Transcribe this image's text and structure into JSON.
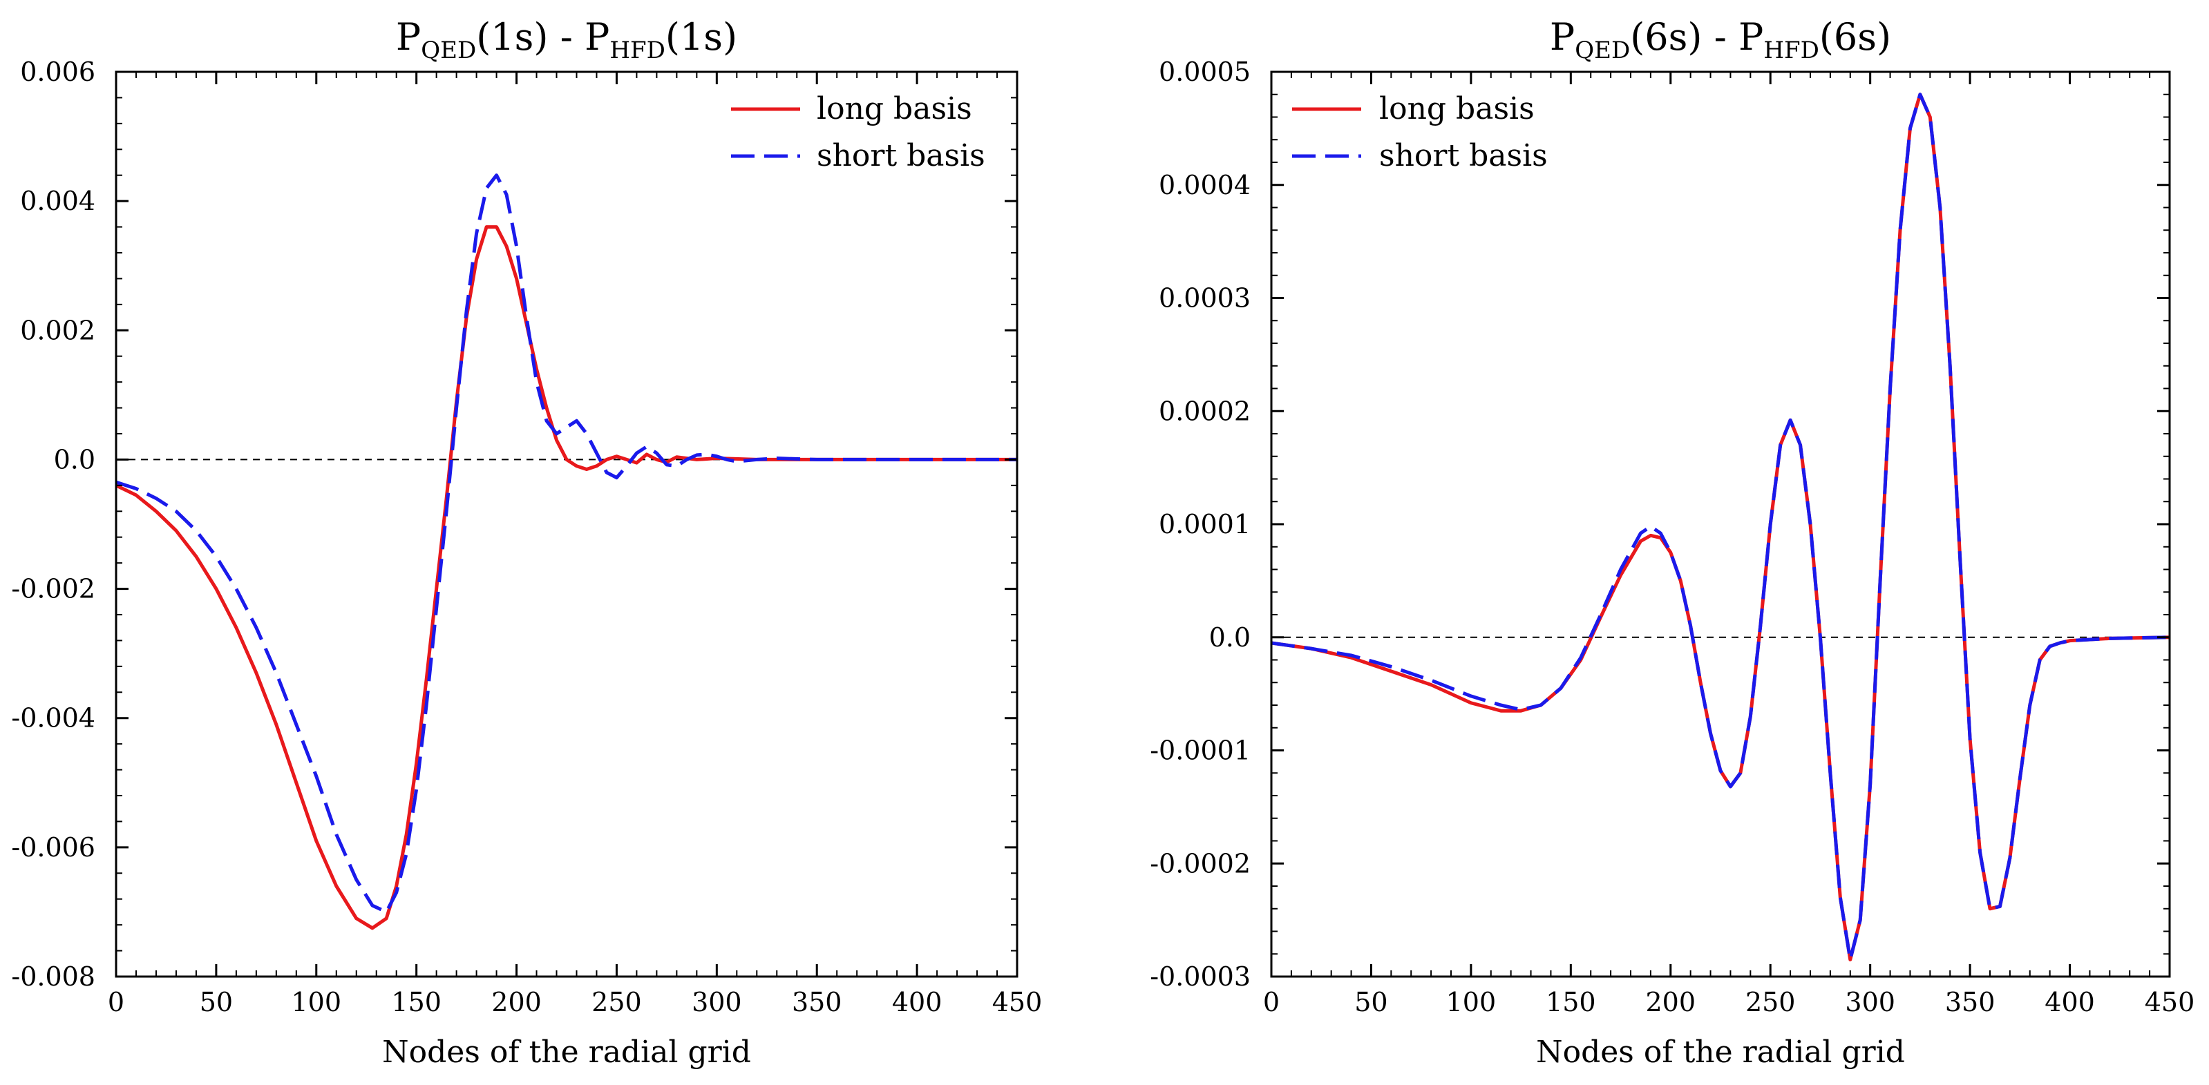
{
  "chart_data": [
    {
      "type": "line",
      "title": {
        "pre1": "P",
        "sub1": "QED",
        "mid": "(1s) - P",
        "sub2": "HFD",
        "post": "(1s)"
      },
      "xlabel": "Nodes of the radial grid",
      "ylabel": "",
      "xlim": [
        0,
        450
      ],
      "ylim": [
        -0.008,
        0.006
      ],
      "x_ticks": [
        0,
        50,
        100,
        150,
        200,
        250,
        300,
        350,
        400,
        450
      ],
      "x_tick_labels": [
        "0",
        "50",
        "100",
        "150",
        "200",
        "250",
        "300",
        "350",
        "400",
        "450"
      ],
      "y_ticks": [
        -0.008,
        -0.006,
        -0.004,
        -0.002,
        0.0,
        0.002,
        0.004,
        0.006
      ],
      "y_tick_labels": [
        "-0.008",
        "-0.006",
        "-0.004",
        "-0.002",
        "0.0",
        "0.002",
        "0.004",
        "0.006"
      ],
      "grid": false,
      "legend_position": "top-right",
      "series": [
        {
          "name": "long basis",
          "color": "#e8191c",
          "dash": "solid",
          "points": [
            [
              0,
              -0.0004
            ],
            [
              10,
              -0.00055
            ],
            [
              20,
              -0.0008
            ],
            [
              30,
              -0.0011
            ],
            [
              40,
              -0.0015
            ],
            [
              50,
              -0.002
            ],
            [
              60,
              -0.0026
            ],
            [
              70,
              -0.0033
            ],
            [
              80,
              -0.0041
            ],
            [
              90,
              -0.005
            ],
            [
              100,
              -0.0059
            ],
            [
              110,
              -0.0066
            ],
            [
              120,
              -0.0071
            ],
            [
              128,
              -0.00725
            ],
            [
              135,
              -0.0071
            ],
            [
              140,
              -0.0066
            ],
            [
              145,
              -0.0058
            ],
            [
              150,
              -0.0047
            ],
            [
              155,
              -0.0034
            ],
            [
              160,
              -0.002
            ],
            [
              165,
              -0.0006
            ],
            [
              170,
              0.0009
            ],
            [
              175,
              0.0022
            ],
            [
              180,
              0.0031
            ],
            [
              185,
              0.0036
            ],
            [
              190,
              0.0036
            ],
            [
              195,
              0.0033
            ],
            [
              200,
              0.0028
            ],
            [
              205,
              0.0021
            ],
            [
              210,
              0.0014
            ],
            [
              215,
              0.0008
            ],
            [
              220,
              0.0003
            ],
            [
              225,
              0.0
            ],
            [
              230,
              -0.0001
            ],
            [
              235,
              -0.00015
            ],
            [
              240,
              -0.0001
            ],
            [
              245,
              0.0
            ],
            [
              250,
              5e-05
            ],
            [
              255,
              0.0
            ],
            [
              260,
              -5e-05
            ],
            [
              265,
              8e-05
            ],
            [
              270,
              0.0
            ],
            [
              275,
              -4e-05
            ],
            [
              280,
              4e-05
            ],
            [
              290,
              0.0
            ],
            [
              300,
              2e-05
            ],
            [
              320,
              0.0
            ],
            [
              360,
              0.0
            ],
            [
              400,
              0.0
            ],
            [
              450,
              0.0
            ]
          ]
        },
        {
          "name": "short basis",
          "color": "#1a1aeb",
          "dash": "dashed",
          "points": [
            [
              0,
              -0.00035
            ],
            [
              10,
              -0.00045
            ],
            [
              20,
              -0.0006
            ],
            [
              30,
              -0.0008
            ],
            [
              40,
              -0.0011
            ],
            [
              50,
              -0.0015
            ],
            [
              60,
              -0.002
            ],
            [
              70,
              -0.0026
            ],
            [
              80,
              -0.0033
            ],
            [
              90,
              -0.0041
            ],
            [
              100,
              -0.0049
            ],
            [
              110,
              -0.0058
            ],
            [
              120,
              -0.0065
            ],
            [
              128,
              -0.0069
            ],
            [
              135,
              -0.007
            ],
            [
              140,
              -0.0067
            ],
            [
              145,
              -0.0061
            ],
            [
              150,
              -0.0051
            ],
            [
              155,
              -0.0038
            ],
            [
              160,
              -0.0023
            ],
            [
              165,
              -0.0008
            ],
            [
              170,
              0.0008
            ],
            [
              175,
              0.0023
            ],
            [
              180,
              0.0035
            ],
            [
              185,
              0.0042
            ],
            [
              190,
              0.0044
            ],
            [
              195,
              0.0041
            ],
            [
              200,
              0.0033
            ],
            [
              205,
              0.0022
            ],
            [
              210,
              0.0012
            ],
            [
              215,
              0.0006
            ],
            [
              220,
              0.0004
            ],
            [
              225,
              0.0005
            ],
            [
              230,
              0.0006
            ],
            [
              235,
              0.0004
            ],
            [
              240,
              0.0001
            ],
            [
              245,
              -0.0002
            ],
            [
              250,
              -0.00028
            ],
            [
              255,
              -0.0001
            ],
            [
              260,
              0.0001
            ],
            [
              265,
              0.0002
            ],
            [
              270,
              0.0001
            ],
            [
              275,
              -8e-05
            ],
            [
              280,
              -0.0001
            ],
            [
              285,
              0.0
            ],
            [
              290,
              7e-05
            ],
            [
              295,
              8e-05
            ],
            [
              300,
              5e-05
            ],
            [
              305,
              0.0
            ],
            [
              310,
              -3e-05
            ],
            [
              320,
              0.0
            ],
            [
              330,
              2e-05
            ],
            [
              350,
              0.0
            ],
            [
              400,
              0.0
            ],
            [
              450,
              0.0
            ]
          ]
        }
      ]
    },
    {
      "type": "line",
      "title": {
        "pre1": "P",
        "sub1": "QED",
        "mid": "(6s) - P",
        "sub2": "HFD",
        "post": "(6s)"
      },
      "xlabel": "Nodes of the radial grid",
      "ylabel": "",
      "xlim": [
        0,
        450
      ],
      "ylim": [
        -0.0003,
        0.0005
      ],
      "x_ticks": [
        0,
        50,
        100,
        150,
        200,
        250,
        300,
        350,
        400,
        450
      ],
      "x_tick_labels": [
        "0",
        "50",
        "100",
        "150",
        "200",
        "250",
        "300",
        "350",
        "400",
        "450"
      ],
      "y_ticks": [
        -0.0003,
        -0.0002,
        -0.0001,
        0.0,
        0.0001,
        0.0002,
        0.0003,
        0.0004,
        0.0005
      ],
      "y_tick_labels": [
        "-0.0003",
        "-0.0002",
        "-0.0001",
        "0.0",
        "0.0001",
        "0.0002",
        "0.0003",
        "0.0004",
        "0.0005"
      ],
      "grid": false,
      "legend_position": "top-left",
      "series": [
        {
          "name": "long basis",
          "color": "#e8191c",
          "dash": "solid",
          "points": [
            [
              0,
              -5e-06
            ],
            [
              20,
              -1e-05
            ],
            [
              40,
              -1.8e-05
            ],
            [
              60,
              -3e-05
            ],
            [
              80,
              -4.2e-05
            ],
            [
              100,
              -5.8e-05
            ],
            [
              115,
              -6.5e-05
            ],
            [
              125,
              -6.5e-05
            ],
            [
              135,
              -6e-05
            ],
            [
              145,
              -4.5e-05
            ],
            [
              155,
              -2e-05
            ],
            [
              165,
              1.8e-05
            ],
            [
              175,
              5.5e-05
            ],
            [
              185,
              8.5e-05
            ],
            [
              190,
              9e-05
            ],
            [
              195,
              8.8e-05
            ],
            [
              200,
              7.5e-05
            ],
            [
              205,
              5e-05
            ],
            [
              210,
              1e-05
            ],
            [
              215,
              -4e-05
            ],
            [
              220,
              -8.5e-05
            ],
            [
              225,
              -0.000118
            ],
            [
              230,
              -0.000132
            ],
            [
              235,
              -0.00012
            ],
            [
              240,
              -7e-05
            ],
            [
              245,
              1e-05
            ],
            [
              250,
              0.0001
            ],
            [
              255,
              0.00017
            ],
            [
              260,
              0.000192
            ],
            [
              265,
              0.00017
            ],
            [
              270,
              0.0001
            ],
            [
              275,
              0.0
            ],
            [
              280,
              -0.00012
            ],
            [
              285,
              -0.00023
            ],
            [
              290,
              -0.000285
            ],
            [
              295,
              -0.00025
            ],
            [
              300,
              -0.00013
            ],
            [
              305,
              5e-05
            ],
            [
              310,
              0.00022
            ],
            [
              315,
              0.00036
            ],
            [
              320,
              0.00045
            ],
            [
              325,
              0.00048
            ],
            [
              330,
              0.00046
            ],
            [
              335,
              0.00038
            ],
            [
              340,
              0.00024
            ],
            [
              345,
              7e-05
            ],
            [
              350,
              -9e-05
            ],
            [
              355,
              -0.00019
            ],
            [
              360,
              -0.00024
            ],
            [
              365,
              -0.000238
            ],
            [
              370,
              -0.000195
            ],
            [
              375,
              -0.000125
            ],
            [
              380,
              -6e-05
            ],
            [
              385,
              -2e-05
            ],
            [
              390,
              -8e-06
            ],
            [
              395,
              -5e-06
            ],
            [
              400,
              -3e-06
            ],
            [
              420,
              -1e-06
            ],
            [
              450,
              0.0
            ]
          ]
        },
        {
          "name": "short basis",
          "color": "#1a1aeb",
          "dash": "dashed",
          "points": [
            [
              0,
              -5e-06
            ],
            [
              20,
              -1e-05
            ],
            [
              40,
              -1.6e-05
            ],
            [
              60,
              -2.6e-05
            ],
            [
              80,
              -3.8e-05
            ],
            [
              100,
              -5.2e-05
            ],
            [
              115,
              -6e-05
            ],
            [
              125,
              -6.4e-05
            ],
            [
              135,
              -6e-05
            ],
            [
              145,
              -4.5e-05
            ],
            [
              155,
              -1.8e-05
            ],
            [
              165,
              2e-05
            ],
            [
              175,
              6e-05
            ],
            [
              185,
              9.2e-05
            ],
            [
              190,
              9.8e-05
            ],
            [
              195,
              9.2e-05
            ],
            [
              200,
              7.5e-05
            ],
            [
              205,
              5e-05
            ],
            [
              210,
              1e-05
            ],
            [
              215,
              -4e-05
            ],
            [
              220,
              -8.5e-05
            ],
            [
              225,
              -0.000118
            ],
            [
              230,
              -0.000132
            ],
            [
              235,
              -0.00012
            ],
            [
              240,
              -7e-05
            ],
            [
              245,
              1e-05
            ],
            [
              250,
              0.0001
            ],
            [
              255,
              0.00017
            ],
            [
              260,
              0.000192
            ],
            [
              265,
              0.00017
            ],
            [
              270,
              0.0001
            ],
            [
              275,
              0.0
            ],
            [
              280,
              -0.00012
            ],
            [
              285,
              -0.00023
            ],
            [
              290,
              -0.000285
            ],
            [
              295,
              -0.00025
            ],
            [
              300,
              -0.00013
            ],
            [
              305,
              5e-05
            ],
            [
              310,
              0.00022
            ],
            [
              315,
              0.00036
            ],
            [
              320,
              0.00045
            ],
            [
              325,
              0.00048
            ],
            [
              330,
              0.00046
            ],
            [
              335,
              0.00038
            ],
            [
              340,
              0.00024
            ],
            [
              345,
              7e-05
            ],
            [
              350,
              -9e-05
            ],
            [
              355,
              -0.00019
            ],
            [
              360,
              -0.00024
            ],
            [
              365,
              -0.000238
            ],
            [
              370,
              -0.000195
            ],
            [
              375,
              -0.000125
            ],
            [
              380,
              -6e-05
            ],
            [
              385,
              -2e-05
            ],
            [
              390,
              -8e-06
            ],
            [
              395,
              -5e-06
            ],
            [
              400,
              -3e-06
            ],
            [
              420,
              -1e-06
            ],
            [
              450,
              0.0
            ]
          ]
        }
      ]
    }
  ]
}
